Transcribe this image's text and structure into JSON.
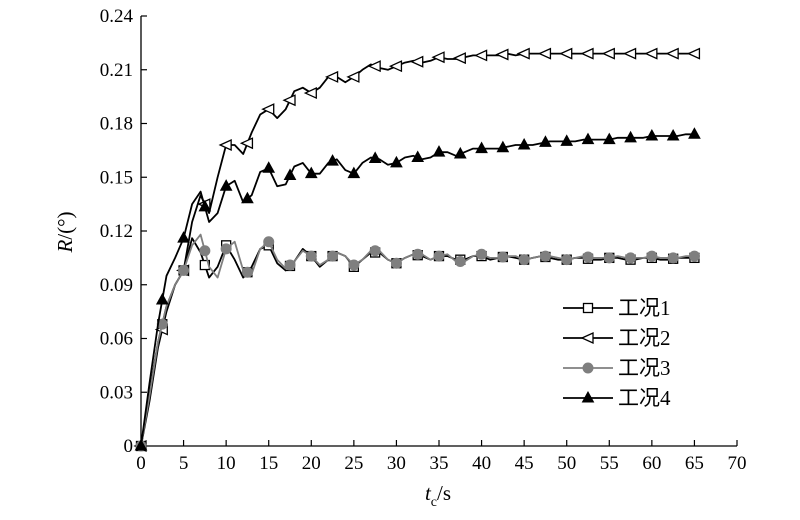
{
  "chart_data": {
    "type": "line",
    "title": "",
    "xlabel": "t_c/s",
    "xlabel_main": "t",
    "xlabel_sub": "c",
    "xlabel_unit": "/s",
    "ylabel": "R/(°)",
    "ylabel_var": "R",
    "ylabel_unit": "/(°)",
    "xlim": [
      0,
      70
    ],
    "ylim": [
      0,
      0.24
    ],
    "xticks": [
      "0",
      "5",
      "10",
      "15",
      "20",
      "25",
      "30",
      "35",
      "40",
      "45",
      "50",
      "55",
      "60",
      "65",
      "70"
    ],
    "yticks": [
      "0",
      "0.03",
      "0.06",
      "0.09",
      "0.12",
      "0.15",
      "0.18",
      "0.21",
      "0.24"
    ],
    "grid": false,
    "legend_position": "lower-right",
    "series": [
      {
        "name": "工况1",
        "marker": "square-open",
        "color": "#000000",
        "x": [
          0,
          1,
          2,
          3,
          4,
          5,
          6,
          7,
          8,
          9,
          10,
          11,
          12,
          13,
          14,
          15,
          16,
          17,
          18,
          19,
          20,
          21,
          22,
          23,
          24,
          25,
          26,
          27,
          28,
          29,
          30,
          31,
          32,
          33,
          34,
          35,
          36,
          37,
          38,
          39,
          40,
          41,
          42,
          43,
          44,
          45,
          46,
          47,
          48,
          49,
          50,
          51,
          52,
          53,
          54,
          55,
          56,
          57,
          58,
          59,
          60,
          61,
          62,
          63,
          64,
          65
        ],
        "y": [
          0.0,
          0.03,
          0.058,
          0.078,
          0.09,
          0.098,
          0.116,
          0.108,
          0.094,
          0.1,
          0.112,
          0.104,
          0.094,
          0.1,
          0.11,
          0.112,
          0.102,
          0.098,
          0.103,
          0.11,
          0.106,
          0.1,
          0.104,
          0.108,
          0.106,
          0.1,
          0.104,
          0.108,
          0.108,
          0.104,
          0.102,
          0.105,
          0.107,
          0.106,
          0.104,
          0.106,
          0.106,
          0.104,
          0.104,
          0.106,
          0.106,
          0.104,
          0.105,
          0.106,
          0.105,
          0.104,
          0.105,
          0.106,
          0.105,
          0.104,
          0.104,
          0.105,
          0.105,
          0.104,
          0.104,
          0.105,
          0.105,
          0.104,
          0.104,
          0.105,
          0.105,
          0.104,
          0.104,
          0.105,
          0.105,
          0.105
        ],
        "marker_x": [
          0,
          2.5,
          5,
          7.5,
          10,
          12.5,
          15,
          17.5,
          20,
          22.5,
          25,
          27.5,
          30,
          32.5,
          35,
          37.5,
          40,
          42.5,
          45,
          47.5,
          50,
          52.5,
          55,
          57.5,
          60,
          62.5,
          65
        ]
      },
      {
        "name": "工况2",
        "marker": "triangle-left-open",
        "color": "#000000",
        "x": [
          0,
          1,
          2,
          3,
          4,
          5,
          6,
          7,
          8,
          9,
          10,
          11,
          12,
          13,
          14,
          15,
          16,
          17,
          18,
          19,
          20,
          21,
          22,
          23,
          24,
          25,
          26,
          27,
          28,
          29,
          30,
          31,
          32,
          33,
          34,
          35,
          36,
          37,
          38,
          39,
          40,
          41,
          42,
          43,
          44,
          45,
          46,
          47,
          48,
          49,
          50,
          51,
          52,
          53,
          54,
          55,
          56,
          57,
          58,
          59,
          60,
          61,
          62,
          63,
          64,
          65
        ],
        "y": [
          0.0,
          0.025,
          0.055,
          0.075,
          0.09,
          0.098,
          0.125,
          0.14,
          0.13,
          0.15,
          0.168,
          0.168,
          0.163,
          0.175,
          0.185,
          0.188,
          0.183,
          0.188,
          0.198,
          0.2,
          0.197,
          0.2,
          0.206,
          0.206,
          0.203,
          0.206,
          0.21,
          0.213,
          0.211,
          0.21,
          0.212,
          0.214,
          0.215,
          0.214,
          0.215,
          0.217,
          0.216,
          0.216,
          0.217,
          0.218,
          0.218,
          0.218,
          0.218,
          0.219,
          0.218,
          0.219,
          0.219,
          0.219,
          0.219,
          0.219,
          0.219,
          0.219,
          0.219,
          0.219,
          0.219,
          0.219,
          0.219,
          0.219,
          0.219,
          0.219,
          0.219,
          0.219,
          0.219,
          0.219,
          0.219,
          0.219
        ],
        "marker_x": [
          0,
          2.5,
          5,
          7.5,
          10,
          12.5,
          15,
          17.5,
          20,
          22.5,
          25,
          27.5,
          30,
          32.5,
          35,
          37.5,
          40,
          42.5,
          45,
          47.5,
          50,
          52.5,
          55,
          57.5,
          60,
          62.5,
          65
        ]
      },
      {
        "name": "工况3",
        "marker": "circle-filled",
        "color": "#7f7f7f",
        "x": [
          0,
          1,
          2,
          3,
          4,
          5,
          6,
          7,
          8,
          9,
          10,
          11,
          12,
          13,
          14,
          15,
          16,
          17,
          18,
          19,
          20,
          21,
          22,
          23,
          24,
          25,
          26,
          27,
          28,
          29,
          30,
          31,
          32,
          33,
          34,
          35,
          36,
          37,
          38,
          39,
          40,
          41,
          42,
          43,
          44,
          45,
          46,
          47,
          48,
          49,
          50,
          51,
          52,
          53,
          54,
          55,
          56,
          57,
          58,
          59,
          60,
          61,
          62,
          63,
          64,
          65
        ],
        "y": [
          0.0,
          0.028,
          0.058,
          0.078,
          0.09,
          0.098,
          0.112,
          0.118,
          0.1,
          0.094,
          0.11,
          0.114,
          0.098,
          0.096,
          0.11,
          0.114,
          0.104,
          0.099,
          0.103,
          0.109,
          0.106,
          0.101,
          0.104,
          0.108,
          0.106,
          0.101,
          0.104,
          0.109,
          0.109,
          0.104,
          0.102,
          0.105,
          0.107,
          0.107,
          0.104,
          0.106,
          0.107,
          0.103,
          0.103,
          0.106,
          0.107,
          0.105,
          0.105,
          0.106,
          0.106,
          0.104,
          0.105,
          0.106,
          0.106,
          0.105,
          0.104,
          0.105,
          0.106,
          0.105,
          0.105,
          0.105,
          0.106,
          0.105,
          0.105,
          0.105,
          0.106,
          0.105,
          0.105,
          0.105,
          0.106,
          0.106
        ],
        "marker_x": [
          0,
          2.5,
          5,
          7.5,
          10,
          12.5,
          15,
          17.5,
          20,
          22.5,
          25,
          27.5,
          30,
          32.5,
          35,
          37.5,
          40,
          42.5,
          45,
          47.5,
          50,
          52.5,
          55,
          57.5,
          60,
          62.5,
          65
        ]
      },
      {
        "name": "工况4",
        "marker": "triangle-up-filled",
        "color": "#000000",
        "x": [
          0,
          1,
          2,
          3,
          4,
          5,
          6,
          7,
          8,
          9,
          10,
          11,
          12,
          13,
          14,
          15,
          16,
          17,
          18,
          19,
          20,
          21,
          22,
          23,
          24,
          25,
          26,
          27,
          28,
          29,
          30,
          31,
          32,
          33,
          34,
          35,
          36,
          37,
          38,
          39,
          40,
          41,
          42,
          43,
          44,
          45,
          46,
          47,
          48,
          49,
          50,
          51,
          52,
          53,
          54,
          55,
          56,
          57,
          58,
          59,
          60,
          61,
          62,
          63,
          64,
          65
        ],
        "y": [
          0.0,
          0.035,
          0.068,
          0.095,
          0.105,
          0.116,
          0.135,
          0.142,
          0.125,
          0.13,
          0.145,
          0.148,
          0.136,
          0.14,
          0.153,
          0.155,
          0.145,
          0.146,
          0.156,
          0.158,
          0.152,
          0.152,
          0.158,
          0.16,
          0.154,
          0.152,
          0.158,
          0.161,
          0.16,
          0.157,
          0.158,
          0.161,
          0.162,
          0.16,
          0.161,
          0.164,
          0.164,
          0.162,
          0.164,
          0.166,
          0.166,
          0.166,
          0.166,
          0.167,
          0.168,
          0.168,
          0.168,
          0.169,
          0.17,
          0.17,
          0.17,
          0.17,
          0.171,
          0.171,
          0.171,
          0.171,
          0.172,
          0.172,
          0.172,
          0.172,
          0.173,
          0.173,
          0.173,
          0.173,
          0.174,
          0.174
        ],
        "marker_x": [
          0,
          2.5,
          5,
          7.5,
          10,
          12.5,
          15,
          17.5,
          20,
          22.5,
          25,
          27.5,
          30,
          32.5,
          35,
          37.5,
          40,
          42.5,
          45,
          47.5,
          50,
          52.5,
          55,
          57.5,
          60,
          62.5,
          65
        ]
      }
    ]
  }
}
